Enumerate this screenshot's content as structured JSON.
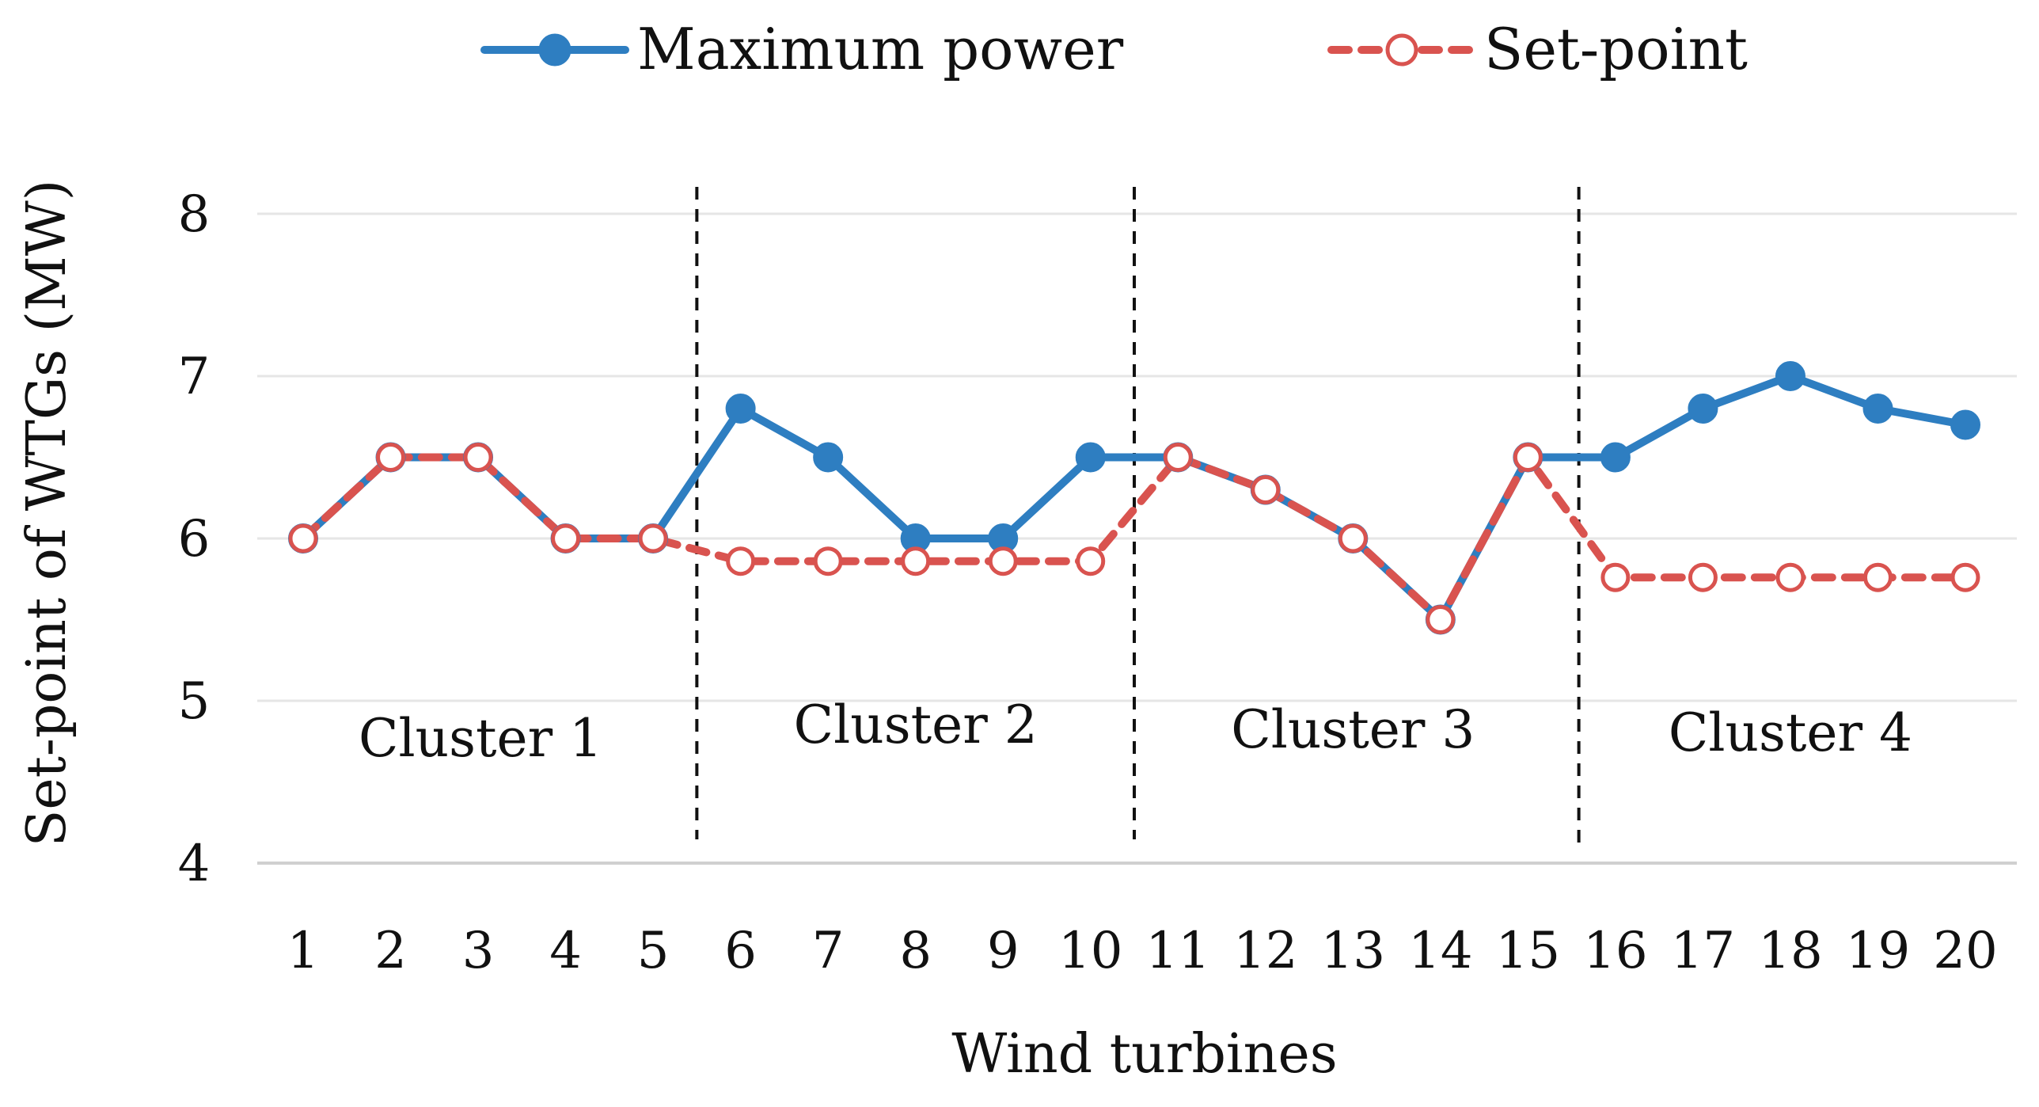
{
  "chart_data": {
    "type": "line",
    "title": "",
    "xlabel": "Wind turbines",
    "ylabel": "Set-point of WTGs (MW)",
    "categories": [
      "1",
      "2",
      "3",
      "4",
      "5",
      "6",
      "7",
      "8",
      "9",
      "10",
      "11",
      "12",
      "13",
      "14",
      "15",
      "16",
      "17",
      "18",
      "19",
      "20"
    ],
    "ylim": [
      4,
      8
    ],
    "yticks": [
      4,
      5,
      6,
      7,
      8
    ],
    "grid": true,
    "legend_position": "top-center",
    "series": [
      {
        "name": "Maximum power",
        "color": "#2E7EC1",
        "line_style": "solid",
        "marker": "filled-circle",
        "values": [
          6.0,
          6.5,
          6.5,
          6.0,
          6.0,
          6.8,
          6.5,
          6.0,
          6.0,
          6.5,
          6.5,
          6.3,
          6.0,
          5.5,
          6.5,
          6.5,
          6.8,
          7.0,
          6.8,
          6.7
        ]
      },
      {
        "name": "Set-point",
        "color": "#D9534F",
        "line_style": "dashed",
        "marker": "hollow-circle",
        "values": [
          6.0,
          6.5,
          6.5,
          6.0,
          6.0,
          5.86,
          5.86,
          5.86,
          5.86,
          5.86,
          6.5,
          6.3,
          6.0,
          5.5,
          6.5,
          5.76,
          5.76,
          5.76,
          5.76,
          5.76
        ]
      }
    ],
    "dividers_after": [
      5,
      10,
      15
    ],
    "cluster_labels": [
      "Cluster 1",
      "Cluster 2",
      "Cluster 3",
      "Cluster 4"
    ]
  }
}
